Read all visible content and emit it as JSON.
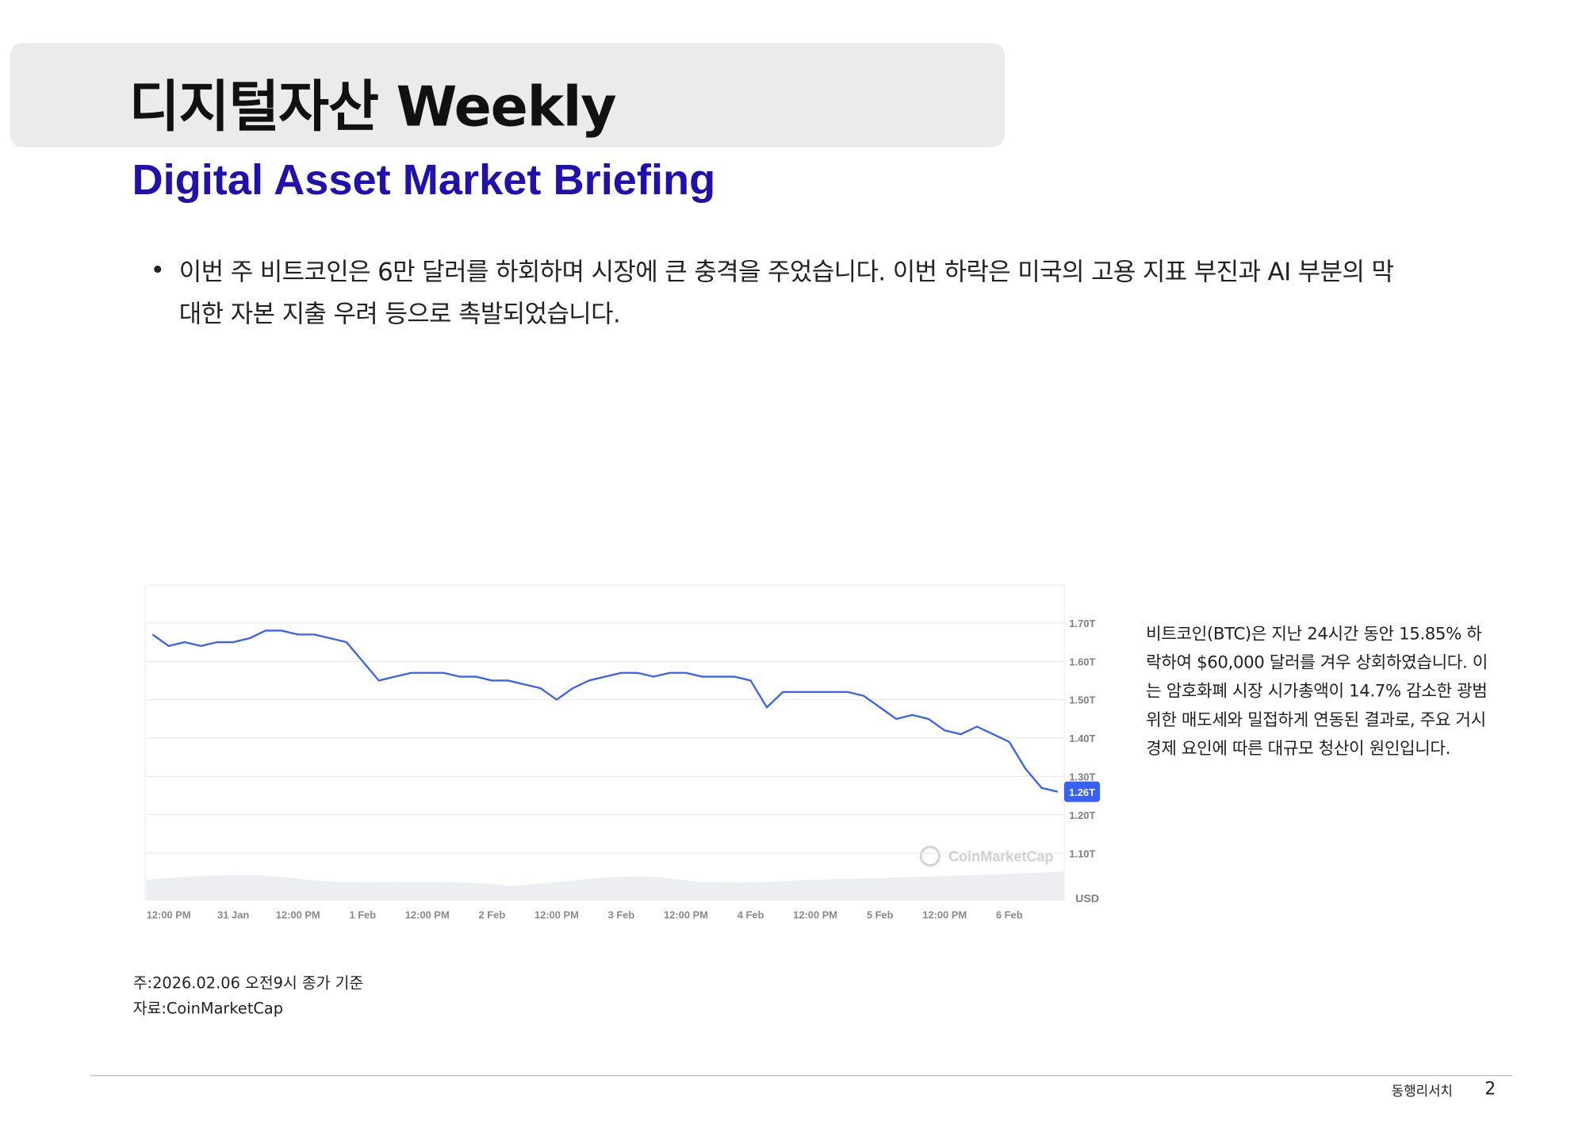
{
  "header": {
    "title": "디지털자산 Weekly",
    "subtitle": "Digital Asset Market Briefing"
  },
  "body": {
    "bullets": [
      "이번 주 비트코인은 6만 달러를 하회하며 시장에 큰 충격을 주었습니다. 이번 하락은 미국의 고용 지표 부진과 AI 부분의 막대한 자본 지출 우려 등으로 촉발되었습니다."
    ]
  },
  "chart_data": {
    "type": "line",
    "color": "#3861fb",
    "grid": true,
    "y_unit": "USD",
    "watermark": "CoinMarketCap",
    "categories": [
      null,
      "12:00 PM",
      null,
      null,
      null,
      "31 Jan",
      null,
      null,
      null,
      "12:00 PM",
      null,
      null,
      null,
      "1 Feb",
      null,
      null,
      null,
      "12:00 PM",
      null,
      null,
      null,
      "2 Feb",
      null,
      null,
      null,
      "12:00 PM",
      null,
      null,
      null,
      "3 Feb",
      null,
      null,
      null,
      "12:00 PM",
      null,
      null,
      null,
      "4 Feb",
      null,
      null,
      null,
      "12:00 PM",
      null,
      null,
      null,
      "5 Feb",
      null,
      null,
      null,
      "12:00 PM",
      null,
      null,
      null,
      "6 Feb",
      null,
      null,
      null
    ],
    "values": [
      1.67,
      1.64,
      1.65,
      1.64,
      1.65,
      1.65,
      1.66,
      1.68,
      1.68,
      1.67,
      1.67,
      1.66,
      1.65,
      1.6,
      1.55,
      1.56,
      1.57,
      1.57,
      1.57,
      1.56,
      1.56,
      1.55,
      1.55,
      1.54,
      1.53,
      1.5,
      1.53,
      1.55,
      1.56,
      1.57,
      1.57,
      1.56,
      1.57,
      1.57,
      1.56,
      1.56,
      1.56,
      1.55,
      1.48,
      1.52,
      1.52,
      1.52,
      1.52,
      1.52,
      1.51,
      1.48,
      1.45,
      1.46,
      1.45,
      1.42,
      1.41,
      1.43,
      1.41,
      1.39,
      1.32,
      1.27,
      1.26
    ],
    "value_labels": [
      null,
      null,
      null,
      null,
      null,
      null,
      null,
      null,
      null,
      null,
      null,
      null,
      null,
      null,
      null,
      null,
      null,
      null,
      null,
      null,
      null,
      null,
      null,
      null,
      null,
      null,
      null,
      null,
      null,
      null,
      null,
      null,
      null,
      null,
      null,
      null,
      null,
      null,
      null,
      null,
      null,
      null,
      null,
      null,
      null,
      null,
      null,
      null,
      null,
      null,
      null,
      null,
      null,
      null,
      null,
      null,
      "1.26T"
    ],
    "ylim": [
      0.98,
      1.8
    ],
    "yticks": [
      {
        "value": 1.1,
        "label": "1.10T"
      },
      {
        "value": 1.2,
        "label": "1.20T"
      },
      {
        "value": 1.3,
        "label": "1.30T"
      },
      {
        "value": 1.4,
        "label": "1.40T"
      },
      {
        "value": 1.5,
        "label": "1.50T"
      },
      {
        "value": 1.6,
        "label": "1.60T"
      },
      {
        "value": 1.7,
        "label": "1.70T"
      }
    ]
  },
  "side_note": "비트코인(BTC)은 지난 24시간 동안 15.85% 하락하여 $60,000 달러를 겨우 상회하였습니다. 이는 암호화폐 시장 시가총액이 14.7% 감소한 광범위한 매도세와 밀접하게 연동된 결과로, 주요 거시경제 요인에 따른 대규모 청산이 원인입니다.",
  "notes": [
    "주:2026.02.06 오전9시 종가 기준",
    "자료:CoinMarketCap"
  ],
  "footer": {
    "org": "동행리서치",
    "page": "2"
  }
}
